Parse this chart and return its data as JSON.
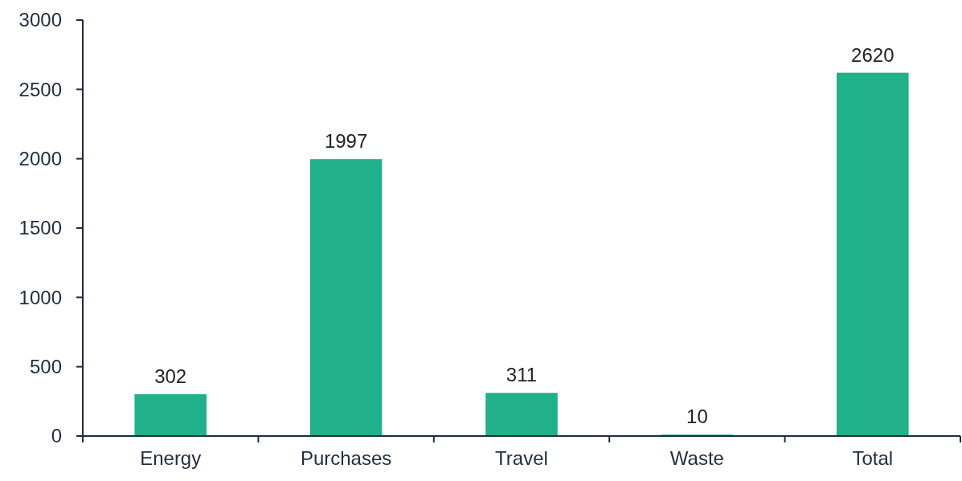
{
  "chart_data": {
    "type": "bar",
    "categories": [
      "Energy",
      "Purchases",
      "Travel",
      "Waste",
      "Total"
    ],
    "values": [
      302,
      1997,
      311,
      10,
      2620
    ],
    "color": "#20b08a",
    "ylim": [
      0,
      3000
    ],
    "yticks": [
      0,
      500,
      1000,
      1500,
      2000,
      2500,
      3000
    ],
    "grid": false,
    "data_labels": true
  }
}
